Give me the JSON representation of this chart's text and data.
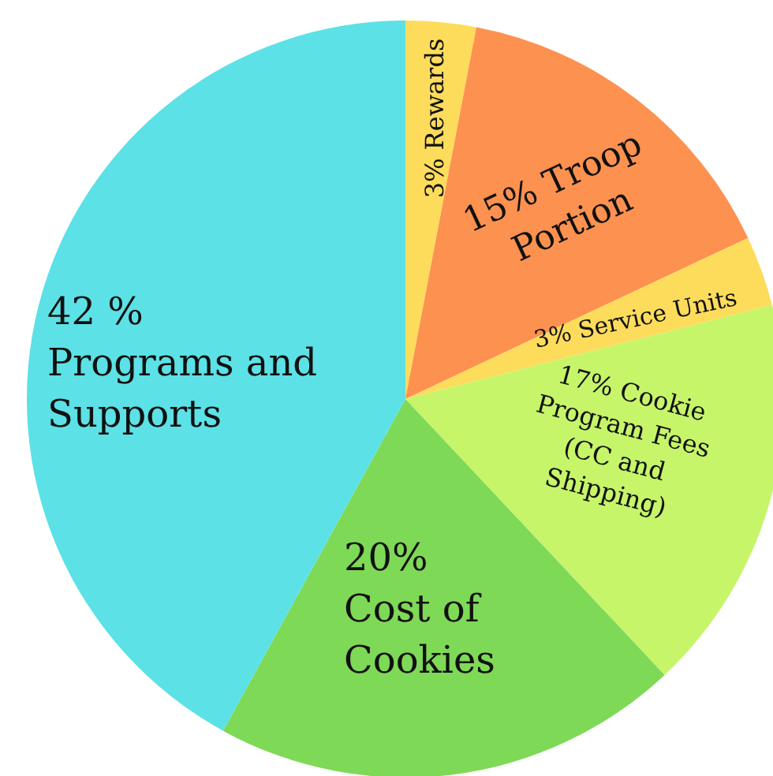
{
  "chart_data": {
    "type": "pie",
    "categories": [
      "Rewards",
      "Troop Portion",
      "Service Units",
      "Cookie Program Fees (CC and Shipping)",
      "Cost of Cookies",
      "Programs and Supports"
    ],
    "values": [
      3,
      15,
      3,
      17,
      20,
      42
    ],
    "value_labels": [
      "3%",
      "15%",
      "3%",
      "17%",
      "20%",
      "42 %"
    ],
    "colors": [
      "#fddc5c",
      "#fd9150",
      "#fddc5c",
      "#c6f56a",
      "#7ed957",
      "#5ce1e6"
    ]
  }
}
